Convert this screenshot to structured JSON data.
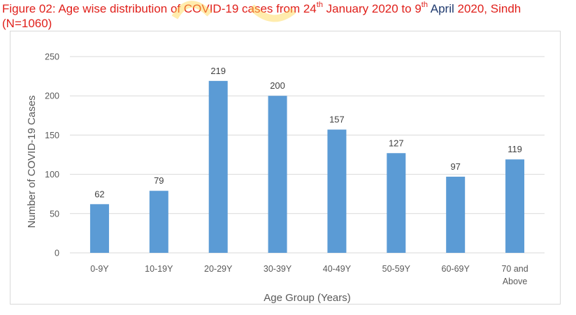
{
  "title": {
    "prefix": "Figure 02: Age wise distribution of COVID-19 cases from 24",
    "sup1": "th",
    "middle": " January 2020 to 9",
    "sup2": "th",
    "april": " April",
    "suffix": " 2020, Sindh",
    "line2": "(N=1060)",
    "color": "#e0201b",
    "april_color": "#1f3a6e"
  },
  "chart_data": {
    "type": "bar",
    "categories": [
      "0-9Y",
      "10-19Y",
      "20-29Y",
      "30-39Y",
      "40-49Y",
      "50-59Y",
      "60-69Y",
      "70 and Above"
    ],
    "category_lines": [
      [
        "0-9Y"
      ],
      [
        "10-19Y"
      ],
      [
        "20-29Y"
      ],
      [
        "30-39Y"
      ],
      [
        "40-49Y"
      ],
      [
        "50-59Y"
      ],
      [
        "60-69Y"
      ],
      [
        "70 and",
        "Above"
      ]
    ],
    "values": [
      62,
      79,
      219,
      200,
      157,
      127,
      97,
      119
    ],
    "data_labels": [
      "62",
      "79",
      "219",
      "200",
      "157",
      "127",
      "97",
      "119"
    ],
    "yticks": [
      0,
      50,
      100,
      150,
      200,
      250
    ],
    "ylim": [
      0,
      250
    ],
    "xlabel": "Age Group (Years)",
    "ylabel": "Number of COVID-19 Cases",
    "grid": true,
    "legend": "none",
    "bar_color": "#5b9bd5",
    "grid_color": "#d9d9d9"
  }
}
